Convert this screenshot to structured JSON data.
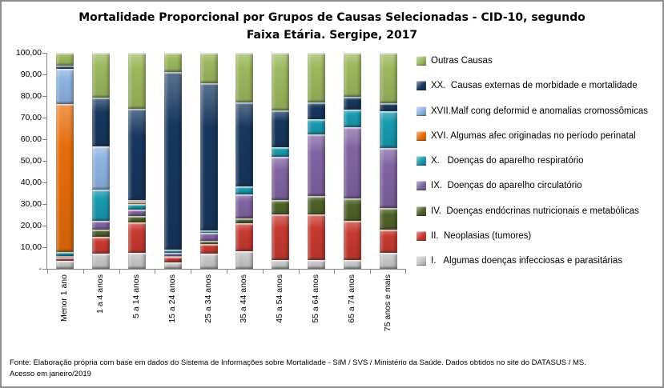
{
  "title": {
    "full": "Mortalidade Proporcional por Grupos de Causas Selecionadas - CID-10, segundo Faixa Etária. Sergipe, 2017",
    "line1": "Mortalidade Proporcional por Grupos de Causas Selecionadas - CID-10, segundo",
    "line2": "Faixa Etária. Sergipe, 2017"
  },
  "footer": {
    "line1": "Fonte: Elaboração própria com base em dados do  Sistema de Informações sobre Mortalidade - SIM / SVS / Ministério da Saúde. Dados obtidos no site do DATASUS / MS.",
    "line2": "Acesso em janeiro/2019"
  },
  "colors": {
    "axis": "#848484",
    "border": "#8e8e8e",
    "text": "#000000"
  },
  "chart_data": {
    "type": "bar",
    "stacked": true,
    "title": "Mortalidade Proporcional por Grupos de Causas Selecionadas - CID-10, segundo Faixa Etária. Sergipe, 2017",
    "xlabel": "",
    "ylabel": "",
    "ylim": [
      0,
      100
    ],
    "grid": false,
    "legend_position": "right",
    "y_ticks": [
      "100,00",
      "90,00",
      "80,00",
      "70,00",
      "60,00",
      "50,00",
      "40,00",
      "30,00",
      "20,00",
      "10,00",
      "-"
    ],
    "categories": [
      "Menor 1 ano",
      "1 a 4 anos",
      "5 a 14 anos",
      "15 a 24 anos",
      "25 a 34 anos",
      "35 a 44 anos",
      "45 a 54 anos",
      "55 a 64 anos",
      "65 a 74 anos",
      "75 anos e mais"
    ],
    "series": [
      {
        "name": "I.   Algumas doenças infecciosas e parasitárias",
        "color": "#C6C6C6",
        "values": [
          3.8,
          6.9,
          7.5,
          3.0,
          6.9,
          8.3,
          4.2,
          4.2,
          4.2,
          7.3
        ]
      },
      {
        "name": "II.  Neoplasias (tumores)",
        "color": "#C63A31",
        "values": [
          1.3,
          7.8,
          14.0,
          2.7,
          4.6,
          13.0,
          21.0,
          21.0,
          18.0,
          11.0
        ]
      },
      {
        "name": "IV.  Doenças endócrinas nutricionais e metabólicas",
        "color": "#4F6228",
        "values": [
          0.4,
          3.3,
          2.8,
          0.3,
          1.3,
          2.0,
          6.8,
          8.7,
          10.5,
          10.0
        ]
      },
      {
        "name": "IX.  Doenças do aparelho circulatório",
        "color": "#8064A2",
        "values": [
          0.4,
          4.3,
          3.0,
          1.6,
          3.7,
          11.0,
          20.0,
          28.5,
          32.8,
          27.5
        ]
      },
      {
        "name": "X.   Doenças do aparelho respiratório",
        "color": "#1899AE",
        "values": [
          1.8,
          14.5,
          2.8,
          1.4,
          1.2,
          3.7,
          4.2,
          7.0,
          8.4,
          17.0
        ]
      },
      {
        "name": "XVI. Algumas afec originadas no período perinatal",
        "color": "#E66C0A",
        "values": [
          68.6,
          0,
          1.2,
          0,
          0,
          0,
          0,
          0,
          0,
          0
        ]
      },
      {
        "name": "XVII.Malf cong deformid e anomalias cromossômicas",
        "color": "#8DB4E2",
        "values": [
          16.2,
          19.8,
          0.7,
          0,
          0,
          0,
          0,
          0,
          0,
          0
        ]
      },
      {
        "name": "XX.  Causas externas de morbidade e mortalidade",
        "color": "#17375E",
        "values": [
          1.7,
          22.7,
          42.0,
          82.0,
          68.3,
          39.0,
          17.3,
          7.8,
          5.8,
          4.0
        ]
      },
      {
        "name": "Outras Causas",
        "color": "#9CB85E",
        "values": [
          5.8,
          20.7,
          26.0,
          9.0,
          14.0,
          23.0,
          26.5,
          22.8,
          20.3,
          23.2
        ]
      }
    ]
  }
}
